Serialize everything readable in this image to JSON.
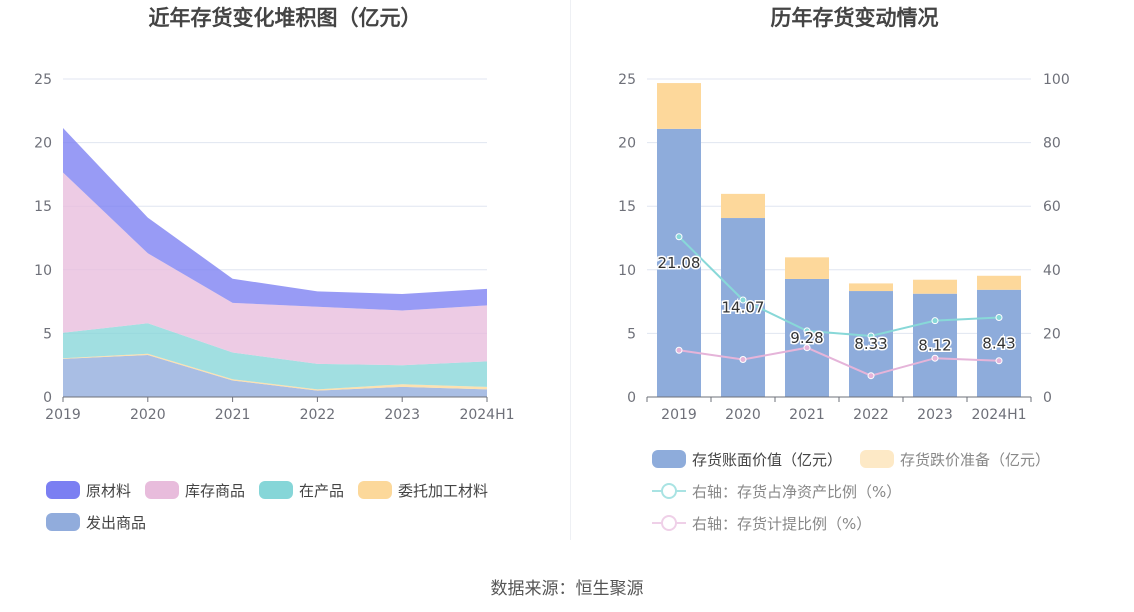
{
  "source": "数据来源：恒生聚源",
  "chart_data": [
    {
      "type": "area",
      "stacked": true,
      "title": "近年存货变化堆积图（亿元）",
      "categories": [
        "2019",
        "2020",
        "2021",
        "2022",
        "2023",
        "2024H1"
      ],
      "y_ticks": [
        "0",
        "5",
        "10",
        "15",
        "20",
        "25"
      ],
      "ylim": [
        0,
        25
      ],
      "grid": true,
      "legend_position": "bottom",
      "series": [
        {
          "name": "发出商品",
          "color": "#91acdc",
          "values": [
            3.0,
            3.3,
            1.3,
            0.5,
            0.8,
            0.6
          ]
        },
        {
          "name": "委托加工材料",
          "color": "#fcd89a",
          "values": [
            0.05,
            0.1,
            0.1,
            0.1,
            0.2,
            0.2
          ]
        },
        {
          "name": "在产品",
          "color": "#86d6d8",
          "values": [
            2.0,
            2.4,
            2.1,
            2.0,
            1.5,
            2.0
          ]
        },
        {
          "name": "库存商品",
          "color": "#e8bcdc",
          "values": [
            12.6,
            5.5,
            3.9,
            4.5,
            4.3,
            4.4
          ]
        },
        {
          "name": "原材料",
          "color": "#7b7ff2",
          "values": [
            3.5,
            2.8,
            1.9,
            1.2,
            1.3,
            1.3
          ]
        }
      ],
      "legend": [
        {
          "name": "原材料",
          "color": "#7b7ff2"
        },
        {
          "name": "库存商品",
          "color": "#e8bcdc"
        },
        {
          "name": "在产品",
          "color": "#86d6d8"
        },
        {
          "name": "委托加工材料",
          "color": "#fcd89a"
        },
        {
          "name": "发出商品",
          "color": "#91acdc"
        }
      ]
    },
    {
      "type": "bar",
      "stacked": true,
      "title": "历年存货变动情况",
      "categories": [
        "2019",
        "2020",
        "2021",
        "2022",
        "2023",
        "2024H1"
      ],
      "y_ticks": [
        "0",
        "5",
        "10",
        "15",
        "20",
        "25"
      ],
      "y2_ticks": [
        "0",
        "20",
        "40",
        "60",
        "80",
        "100"
      ],
      "ylim": [
        0,
        25
      ],
      "y2lim": [
        0,
        100
      ],
      "grid": true,
      "legend_position": "bottom",
      "series": [
        {
          "name": "存货账面价值（亿元）",
          "color": "#8eacdb",
          "values": [
            21.08,
            14.07,
            9.28,
            8.33,
            8.12,
            8.43
          ],
          "labels": [
            "21.08",
            "14.07",
            "9.28",
            "8.33",
            "8.12",
            "8.43"
          ]
        },
        {
          "name": "存货跌价准备（亿元）",
          "color": "#fdd89b",
          "values": [
            3.6,
            1.9,
            1.7,
            0.6,
            1.1,
            1.1
          ]
        }
      ],
      "line_series": [
        {
          "name": "右轴：存货占净资产比例（%）",
          "color": "#88d8d8",
          "axis": "right",
          "values": [
            50.4,
            30.5,
            20.8,
            19.2,
            24.0,
            25.0
          ]
        },
        {
          "name": "右轴：存货计提比例（%）",
          "color": "#e5b4d9",
          "axis": "right",
          "values": [
            14.7,
            11.8,
            15.5,
            6.7,
            12.2,
            11.4
          ]
        }
      ]
    }
  ]
}
